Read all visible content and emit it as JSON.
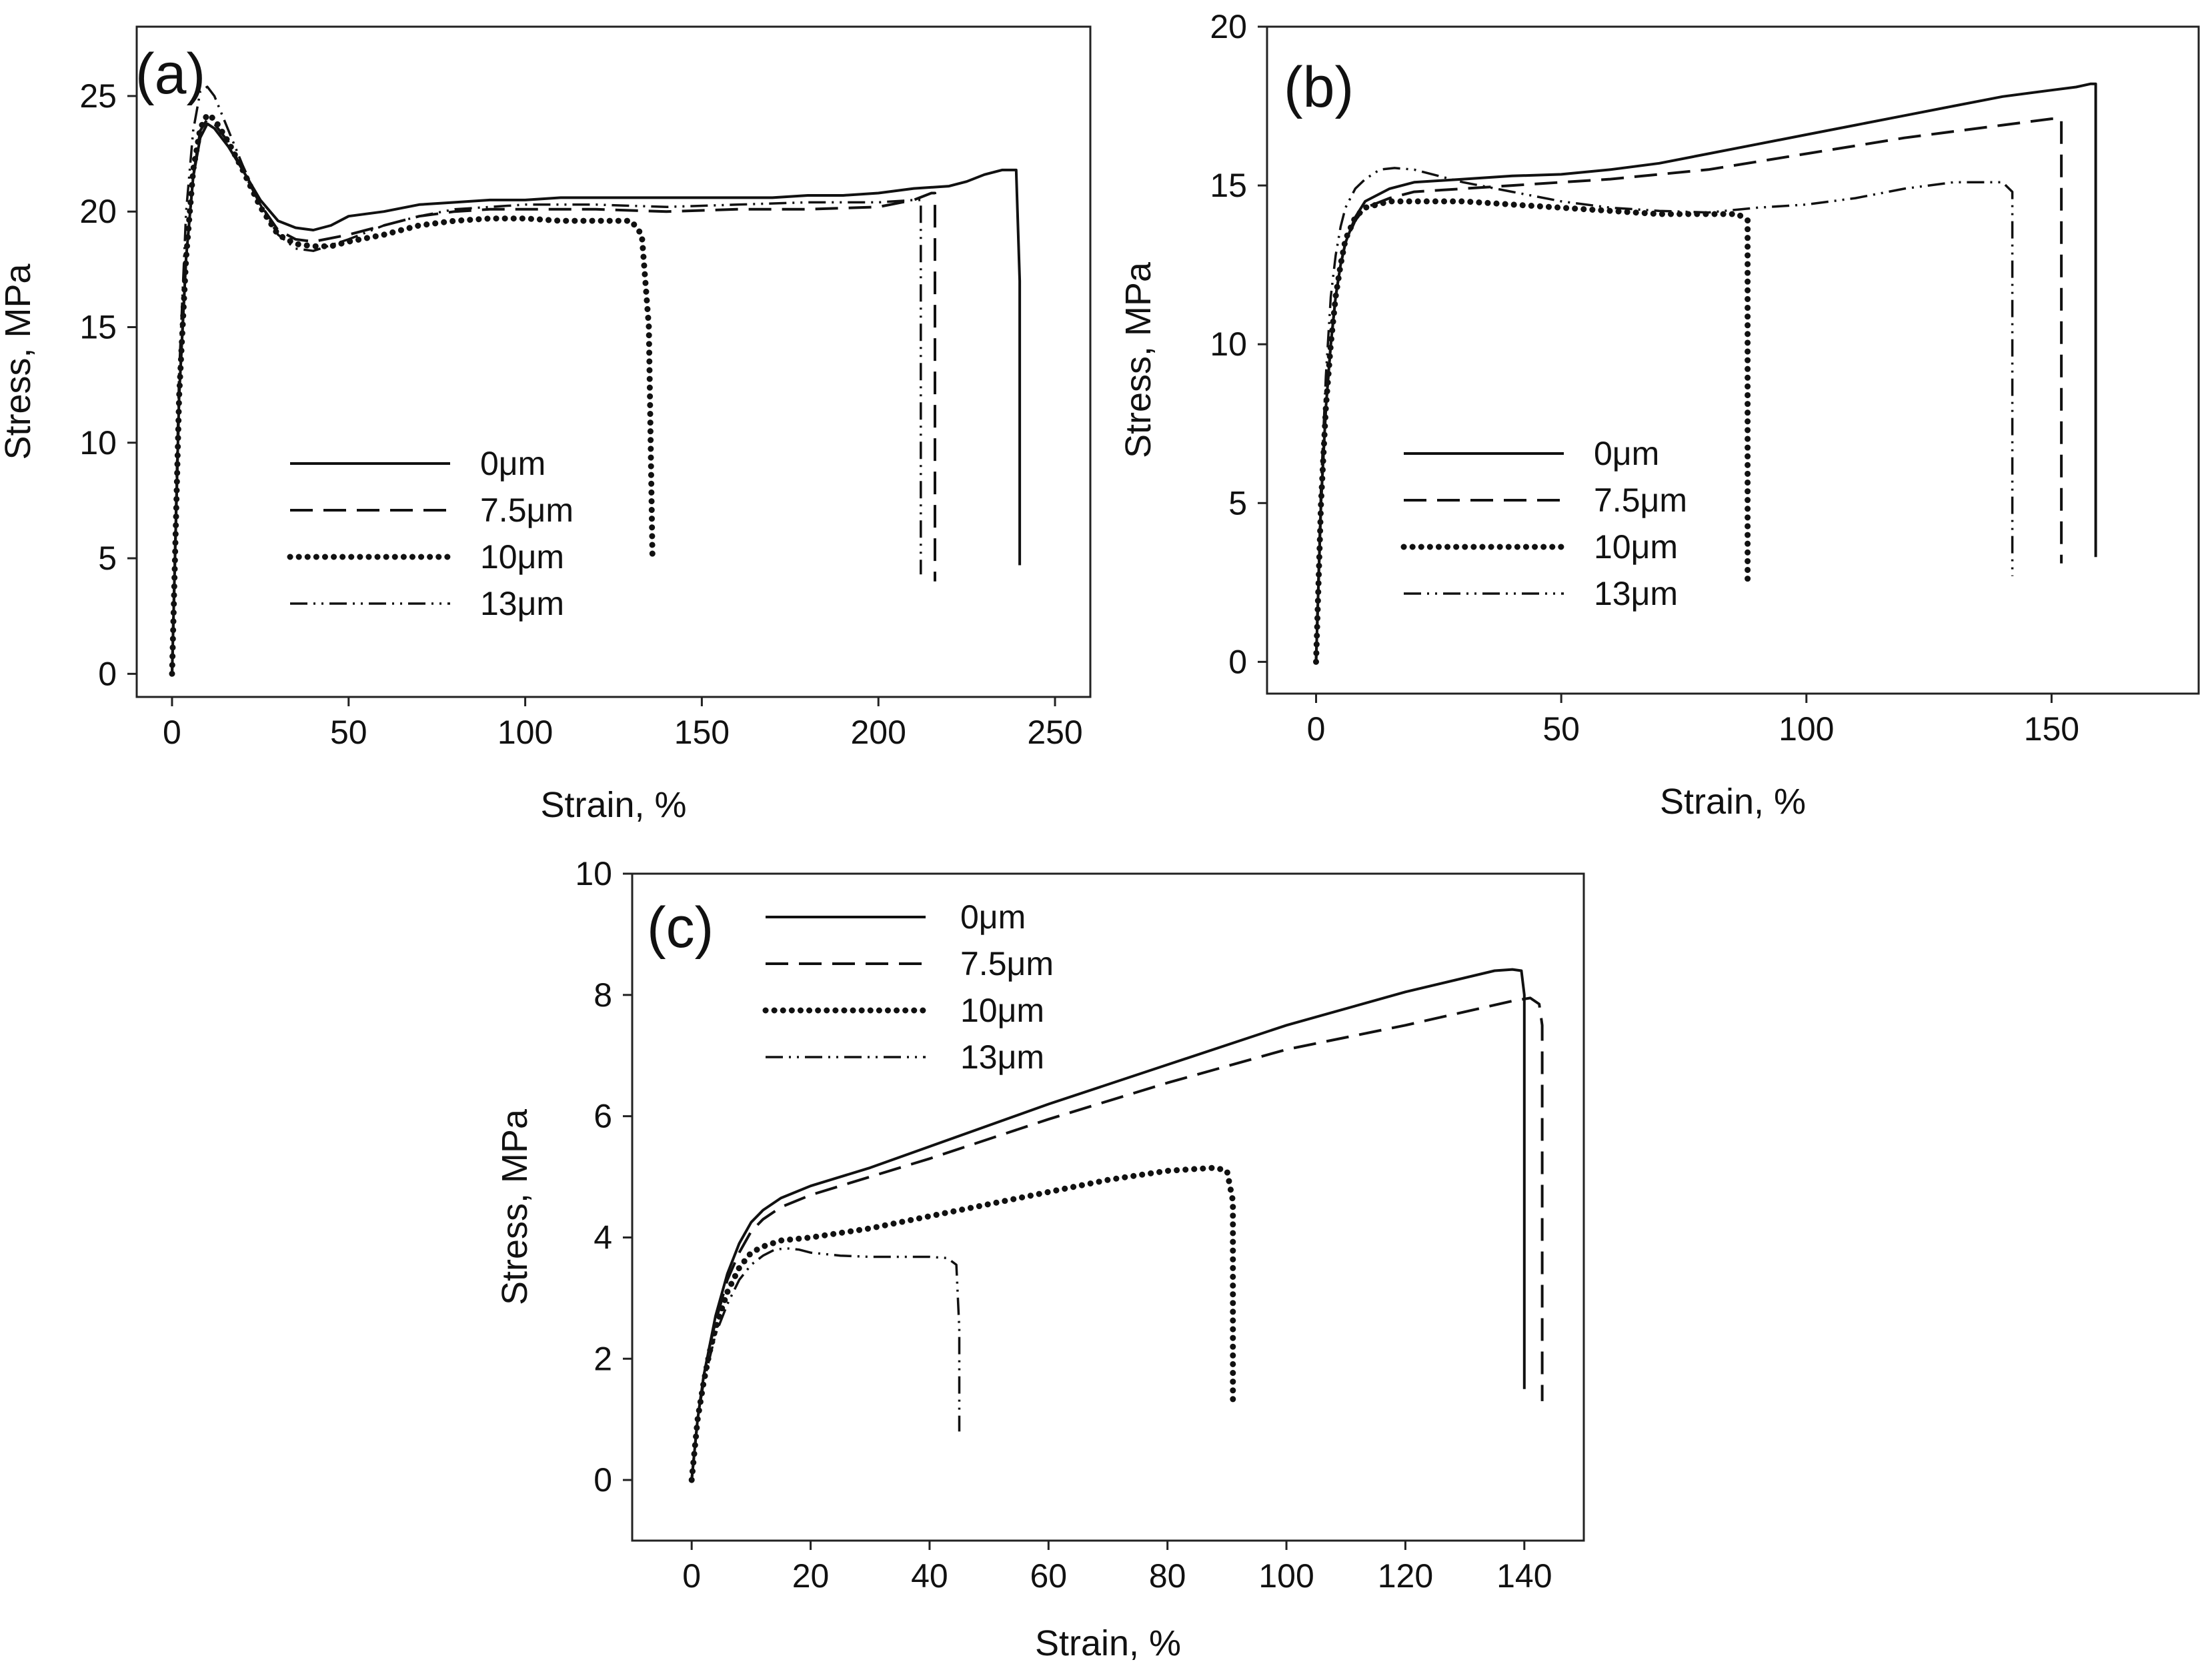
{
  "chart_data": [
    {
      "type": "line",
      "panel": "(a)",
      "xlabel": "Strain, %",
      "ylabel": "Stress, MPa",
      "xlim": [
        -10,
        260
      ],
      "ylim": [
        -1,
        28
      ],
      "xticks": [
        0,
        50,
        100,
        150,
        200,
        250
      ],
      "yticks": [
        0,
        5,
        10,
        15,
        20,
        25
      ],
      "legend_position": "lower-left-center",
      "series": [
        {
          "name": "0μm",
          "style": "solid",
          "x": [
            0,
            2,
            4,
            6,
            8,
            10,
            12,
            16,
            20,
            25,
            30,
            35,
            40,
            45,
            50,
            60,
            70,
            80,
            90,
            100,
            110,
            120,
            130,
            140,
            150,
            160,
            170,
            180,
            190,
            200,
            210,
            220,
            225,
            230,
            235,
            239,
            240,
            240
          ],
          "y": [
            0,
            12,
            18,
            21.5,
            23.2,
            23.8,
            23.6,
            22.8,
            21.8,
            20.5,
            19.6,
            19.3,
            19.2,
            19.4,
            19.8,
            20.0,
            20.3,
            20.4,
            20.5,
            20.5,
            20.6,
            20.6,
            20.6,
            20.6,
            20.6,
            20.6,
            20.6,
            20.7,
            20.7,
            20.8,
            21.0,
            21.1,
            21.3,
            21.6,
            21.8,
            21.8,
            17,
            4.7
          ]
        },
        {
          "name": "7.5μm",
          "style": "dashed",
          "x": [
            0,
            2,
            4,
            6,
            8,
            10,
            12,
            16,
            20,
            25,
            30,
            35,
            40,
            50,
            60,
            70,
            80,
            90,
            100,
            120,
            140,
            160,
            180,
            200,
            210,
            215,
            216,
            216
          ],
          "y": [
            0,
            12,
            18,
            21.5,
            23.5,
            24.0,
            23.8,
            23.0,
            21.8,
            20.3,
            19.2,
            18.8,
            18.7,
            19.0,
            19.4,
            19.8,
            20.0,
            20.1,
            20.1,
            20.1,
            20.0,
            20.1,
            20.1,
            20.2,
            20.5,
            20.8,
            20.8,
            4.0
          ]
        },
        {
          "name": "10μm",
          "style": "dotted",
          "x": [
            0,
            2,
            4,
            6,
            8,
            10,
            12,
            16,
            20,
            25,
            30,
            35,
            40,
            45,
            50,
            60,
            70,
            80,
            90,
            100,
            110,
            120,
            125,
            130,
            133,
            135,
            136
          ],
          "y": [
            0,
            12,
            18,
            21.8,
            23.6,
            24.2,
            24.0,
            23.0,
            21.8,
            20.2,
            19.0,
            18.6,
            18.5,
            18.5,
            18.7,
            19.0,
            19.4,
            19.6,
            19.7,
            19.7,
            19.6,
            19.6,
            19.6,
            19.6,
            19.0,
            15,
            5.2
          ]
        },
        {
          "name": "13μm",
          "style": "dashdotdot",
          "x": [
            0,
            2,
            4,
            6,
            8,
            10,
            12,
            16,
            20,
            25,
            30,
            35,
            40,
            50,
            60,
            70,
            80,
            90,
            100,
            120,
            140,
            160,
            180,
            200,
            210,
            212,
            212
          ],
          "y": [
            0,
            13,
            20,
            23.5,
            25.2,
            25.4,
            25.0,
            23.5,
            22.0,
            20.3,
            19.0,
            18.4,
            18.3,
            18.8,
            19.4,
            19.8,
            20.1,
            20.2,
            20.3,
            20.3,
            20.2,
            20.3,
            20.4,
            20.4,
            20.5,
            20.5,
            4.3
          ]
        }
      ]
    },
    {
      "type": "line",
      "panel": "(b)",
      "xlabel": "Strain, %",
      "ylabel": "Stress, MPa",
      "xlim": [
        -10,
        180
      ],
      "ylim": [
        -1,
        20
      ],
      "xticks": [
        0,
        50,
        100,
        150
      ],
      "yticks": [
        0,
        5,
        10,
        15,
        20
      ],
      "legend_position": "lower-left-center",
      "series": [
        {
          "name": "0μm",
          "style": "solid",
          "x": [
            0,
            1,
            2,
            3,
            4,
            5,
            6,
            8,
            10,
            15,
            20,
            30,
            40,
            50,
            60,
            70,
            80,
            90,
            100,
            110,
            120,
            130,
            140,
            150,
            155,
            158,
            159,
            159
          ],
          "y": [
            0,
            5,
            8,
            10,
            11.5,
            12.5,
            13.2,
            14.0,
            14.5,
            14.9,
            15.1,
            15.2,
            15.3,
            15.35,
            15.5,
            15.7,
            16.0,
            16.3,
            16.6,
            16.9,
            17.2,
            17.5,
            17.8,
            18.0,
            18.1,
            18.2,
            18.2,
            3.3
          ]
        },
        {
          "name": "7.5μm",
          "style": "dashed",
          "x": [
            0,
            1,
            2,
            3,
            4,
            5,
            6,
            8,
            10,
            15,
            20,
            30,
            40,
            50,
            60,
            70,
            80,
            90,
            100,
            110,
            120,
            130,
            140,
            150,
            152,
            152
          ],
          "y": [
            0,
            5,
            8,
            10,
            11.5,
            12.5,
            13.2,
            13.9,
            14.3,
            14.6,
            14.8,
            14.9,
            15.0,
            15.1,
            15.2,
            15.35,
            15.5,
            15.75,
            16.0,
            16.25,
            16.5,
            16.7,
            16.9,
            17.1,
            17.1,
            3.1
          ]
        },
        {
          "name": "10μm",
          "style": "dotted",
          "x": [
            0,
            1,
            2,
            3,
            4,
            5,
            6,
            8,
            10,
            15,
            20,
            30,
            40,
            50,
            60,
            70,
            80,
            86,
            88,
            88
          ],
          "y": [
            0,
            5,
            8,
            10,
            11.5,
            12.5,
            13.3,
            14.0,
            14.3,
            14.5,
            14.5,
            14.5,
            14.4,
            14.3,
            14.2,
            14.1,
            14.1,
            14.1,
            13.9,
            2.6
          ]
        },
        {
          "name": "13μm",
          "style": "dashdotdot",
          "x": [
            0,
            1,
            2,
            3,
            4,
            5,
            6,
            8,
            10,
            13,
            16,
            20,
            25,
            30,
            40,
            50,
            60,
            70,
            80,
            90,
            100,
            110,
            120,
            130,
            140,
            142,
            142
          ],
          "y": [
            0,
            5.5,
            9,
            11.5,
            12.8,
            13.7,
            14.3,
            14.9,
            15.2,
            15.5,
            15.55,
            15.5,
            15.3,
            15.1,
            14.8,
            14.5,
            14.3,
            14.2,
            14.15,
            14.3,
            14.4,
            14.6,
            14.9,
            15.1,
            15.1,
            14.8,
            2.7
          ]
        }
      ]
    },
    {
      "type": "line",
      "panel": "(c)",
      "xlabel": "Strain, %",
      "ylabel": "Stress, MPa",
      "xlim": [
        -10,
        150
      ],
      "ylim": [
        -1,
        10
      ],
      "xticks": [
        0,
        20,
        40,
        60,
        80,
        100,
        120,
        140
      ],
      "yticks": [
        0,
        2,
        4,
        6,
        8,
        10
      ],
      "legend_position": "top-left",
      "series": [
        {
          "name": "0μm",
          "style": "solid",
          "x": [
            0,
            1,
            2,
            3,
            4,
            6,
            8,
            10,
            12,
            15,
            20,
            30,
            40,
            60,
            80,
            100,
            120,
            135,
            138,
            139.5,
            140,
            140
          ],
          "y": [
            0,
            1,
            1.7,
            2.2,
            2.7,
            3.4,
            3.9,
            4.25,
            4.45,
            4.65,
            4.85,
            5.15,
            5.5,
            6.2,
            6.85,
            7.5,
            8.05,
            8.4,
            8.42,
            8.4,
            8.0,
            1.5
          ]
        },
        {
          "name": "7.5μm",
          "style": "dashed",
          "x": [
            0,
            1,
            2,
            3,
            4,
            6,
            8,
            10,
            12,
            15,
            20,
            30,
            40,
            60,
            80,
            100,
            120,
            138,
            141,
            142.5,
            143,
            143
          ],
          "y": [
            0,
            1,
            1.7,
            2.2,
            2.6,
            3.3,
            3.75,
            4.1,
            4.3,
            4.5,
            4.7,
            5.0,
            5.3,
            5.95,
            6.55,
            7.1,
            7.5,
            7.9,
            7.95,
            7.85,
            7.5,
            1.3
          ]
        },
        {
          "name": "10μm",
          "style": "dotted",
          "x": [
            0,
            1,
            2,
            3,
            4,
            6,
            8,
            10,
            12,
            15,
            20,
            30,
            40,
            50,
            60,
            70,
            80,
            88,
            90,
            91,
            91
          ],
          "y": [
            0,
            1,
            1.6,
            2.1,
            2.5,
            3.1,
            3.5,
            3.75,
            3.85,
            3.95,
            4.0,
            4.15,
            4.35,
            4.55,
            4.75,
            4.95,
            5.1,
            5.15,
            5.1,
            4.6,
            1.2
          ]
        },
        {
          "name": "13μm",
          "style": "dashdotdot",
          "x": [
            0,
            1,
            2,
            3,
            4,
            6,
            8,
            10,
            12,
            14,
            16,
            18,
            20,
            25,
            30,
            35,
            40,
            43,
            44.5,
            45,
            45
          ],
          "y": [
            0,
            1,
            1.6,
            2.0,
            2.4,
            2.9,
            3.3,
            3.55,
            3.7,
            3.8,
            3.82,
            3.8,
            3.75,
            3.7,
            3.68,
            3.68,
            3.68,
            3.66,
            3.55,
            2.5,
            0.8
          ]
        }
      ]
    }
  ]
}
